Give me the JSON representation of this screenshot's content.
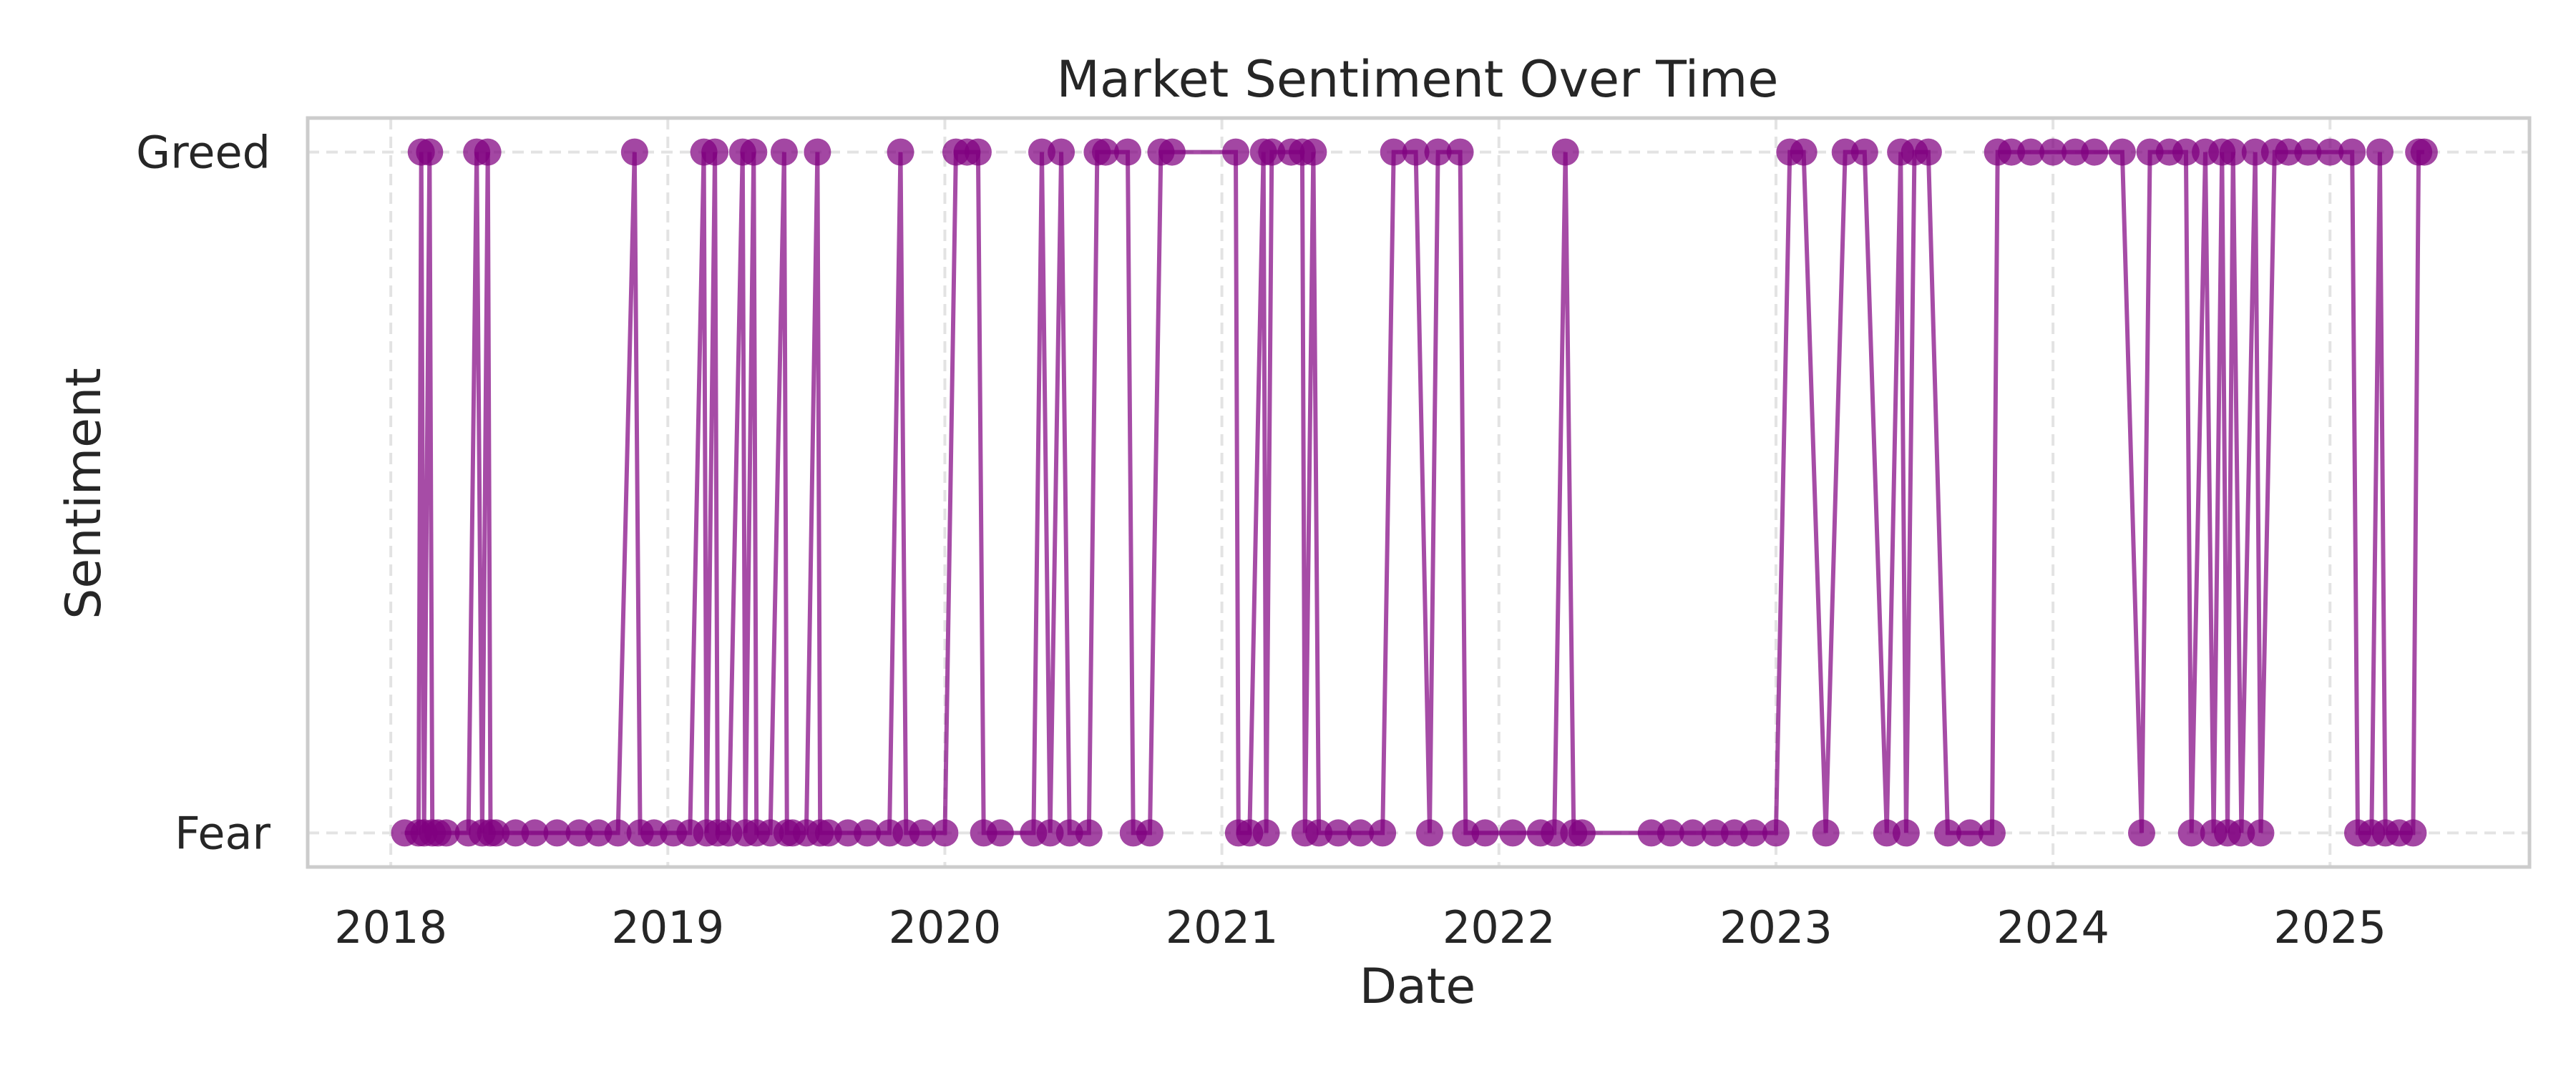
{
  "chart_data": {
    "type": "line",
    "title": "Market Sentiment Over Time",
    "xlabel": "Date",
    "ylabel": "Sentiment",
    "x_ticks": [
      "2018",
      "2019",
      "2020",
      "2021",
      "2022",
      "2023",
      "2024",
      "2025"
    ],
    "y_categories": [
      "Fear",
      "Greed"
    ],
    "xlim": [
      2017.7,
      2025.72
    ],
    "ylim": [
      -0.05,
      1.05
    ],
    "grid": true,
    "line_color": "#800080",
    "marker_color": "#800080",
    "series": [
      {
        "name": "Sentiment",
        "points": [
          [
            2018.05,
            0
          ],
          [
            2018.1,
            0
          ],
          [
            2018.11,
            1
          ],
          [
            2018.12,
            0
          ],
          [
            2018.14,
            1
          ],
          [
            2018.15,
            0
          ],
          [
            2018.17,
            0
          ],
          [
            2018.2,
            0
          ],
          [
            2018.28,
            0
          ],
          [
            2018.31,
            1
          ],
          [
            2018.33,
            0
          ],
          [
            2018.35,
            1
          ],
          [
            2018.36,
            0
          ],
          [
            2018.38,
            0
          ],
          [
            2018.45,
            0
          ],
          [
            2018.52,
            0
          ],
          [
            2018.6,
            0
          ],
          [
            2018.68,
            0
          ],
          [
            2018.75,
            0
          ],
          [
            2018.82,
            0
          ],
          [
            2018.88,
            1
          ],
          [
            2018.9,
            0
          ],
          [
            2018.95,
            0
          ],
          [
            2019.02,
            0
          ],
          [
            2019.08,
            0
          ],
          [
            2019.13,
            1
          ],
          [
            2019.14,
            0
          ],
          [
            2019.17,
            1
          ],
          [
            2019.18,
            0
          ],
          [
            2019.22,
            0
          ],
          [
            2019.27,
            1
          ],
          [
            2019.28,
            0
          ],
          [
            2019.31,
            1
          ],
          [
            2019.32,
            0
          ],
          [
            2019.37,
            0
          ],
          [
            2019.42,
            1
          ],
          [
            2019.43,
            0
          ],
          [
            2019.45,
            0
          ],
          [
            2019.5,
            0
          ],
          [
            2019.54,
            1
          ],
          [
            2019.55,
            0
          ],
          [
            2019.58,
            0
          ],
          [
            2019.65,
            0
          ],
          [
            2019.72,
            0
          ],
          [
            2019.8,
            0
          ],
          [
            2019.84,
            1
          ],
          [
            2019.86,
            0
          ],
          [
            2019.92,
            0
          ],
          [
            2020.0,
            0
          ],
          [
            2020.04,
            1
          ],
          [
            2020.08,
            1
          ],
          [
            2020.12,
            1
          ],
          [
            2020.14,
            0
          ],
          [
            2020.2,
            0
          ],
          [
            2020.32,
            0
          ],
          [
            2020.35,
            1
          ],
          [
            2020.38,
            0
          ],
          [
            2020.42,
            1
          ],
          [
            2020.45,
            0
          ],
          [
            2020.52,
            0
          ],
          [
            2020.55,
            1
          ],
          [
            2020.58,
            1
          ],
          [
            2020.66,
            1
          ],
          [
            2020.68,
            0
          ],
          [
            2020.74,
            0
          ],
          [
            2020.78,
            1
          ],
          [
            2020.82,
            1
          ],
          [
            2021.05,
            1
          ],
          [
            2021.06,
            0
          ],
          [
            2021.1,
            0
          ],
          [
            2021.15,
            1
          ],
          [
            2021.16,
            0
          ],
          [
            2021.18,
            1
          ],
          [
            2021.25,
            1
          ],
          [
            2021.29,
            1
          ],
          [
            2021.3,
            0
          ],
          [
            2021.33,
            1
          ],
          [
            2021.35,
            0
          ],
          [
            2021.42,
            0
          ],
          [
            2021.5,
            0
          ],
          [
            2021.58,
            0
          ],
          [
            2021.62,
            1
          ],
          [
            2021.7,
            1
          ],
          [
            2021.75,
            0
          ],
          [
            2021.78,
            1
          ],
          [
            2021.86,
            1
          ],
          [
            2021.88,
            0
          ],
          [
            2021.95,
            0
          ],
          [
            2022.05,
            0
          ],
          [
            2022.15,
            0
          ],
          [
            2022.2,
            0
          ],
          [
            2022.24,
            1
          ],
          [
            2022.27,
            0
          ],
          [
            2022.3,
            0
          ],
          [
            2022.55,
            0
          ],
          [
            2022.62,
            0
          ],
          [
            2022.7,
            0
          ],
          [
            2022.78,
            0
          ],
          [
            2022.85,
            0
          ],
          [
            2022.92,
            0
          ],
          [
            2023.0,
            0
          ],
          [
            2023.05,
            1
          ],
          [
            2023.1,
            1
          ],
          [
            2023.18,
            0
          ],
          [
            2023.25,
            1
          ],
          [
            2023.32,
            1
          ],
          [
            2023.4,
            0
          ],
          [
            2023.45,
            1
          ],
          [
            2023.47,
            0
          ],
          [
            2023.5,
            1
          ],
          [
            2023.55,
            1
          ],
          [
            2023.62,
            0
          ],
          [
            2023.7,
            0
          ],
          [
            2023.78,
            0
          ],
          [
            2023.8,
            1
          ],
          [
            2023.85,
            1
          ],
          [
            2023.92,
            1
          ],
          [
            2024.0,
            1
          ],
          [
            2024.08,
            1
          ],
          [
            2024.15,
            1
          ],
          [
            2024.25,
            1
          ],
          [
            2024.32,
            0
          ],
          [
            2024.35,
            1
          ],
          [
            2024.42,
            1
          ],
          [
            2024.48,
            1
          ],
          [
            2024.5,
            0
          ],
          [
            2024.55,
            1
          ],
          [
            2024.58,
            0
          ],
          [
            2024.61,
            1
          ],
          [
            2024.63,
            0
          ],
          [
            2024.65,
            1
          ],
          [
            2024.68,
            0
          ],
          [
            2024.75,
            0
          ],
          [
            2024.73,
            1
          ],
          [
            2024.8,
            1
          ],
          [
            2024.85,
            1
          ],
          [
            2024.92,
            1
          ],
          [
            2025.0,
            1
          ],
          [
            2025.08,
            1
          ],
          [
            2025.1,
            0
          ],
          [
            2025.15,
            0
          ],
          [
            2025.18,
            1
          ],
          [
            2025.2,
            0
          ],
          [
            2025.25,
            0
          ],
          [
            2025.3,
            0
          ],
          [
            2025.32,
            1
          ],
          [
            2025.34,
            1
          ]
        ]
      }
    ]
  }
}
